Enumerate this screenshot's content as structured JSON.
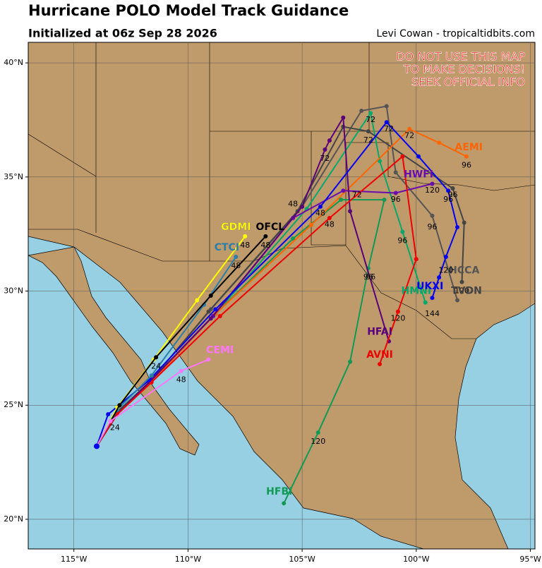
{
  "chart_data": {
    "type": "track_map",
    "title": "Hurricane POLO Model Track Guidance",
    "subtitle": "Initialized at 06z Sep 28 2026",
    "credit": "Levi Cowan - tropicaltidbits.com",
    "warning": [
      "DO NOT USE THIS MAP",
      "TO MAKE DECISIONS!",
      "SEEK OFFICIAL INFO"
    ],
    "xlim": [
      -117,
      -94.8
    ],
    "ylim": [
      18.7,
      40.9
    ],
    "xticks": [
      {
        "value": -115,
        "label": "115°W"
      },
      {
        "value": -110,
        "label": "110°W"
      },
      {
        "value": -105,
        "label": "105°W"
      },
      {
        "value": -100,
        "label": "100°W"
      },
      {
        "value": -95,
        "label": "95°W"
      }
    ],
    "yticks": [
      {
        "value": 20,
        "label": "20°N"
      },
      {
        "value": 25,
        "label": "25°N"
      },
      {
        "value": 30,
        "label": "30°N"
      },
      {
        "value": 35,
        "label": "35°N"
      },
      {
        "value": 40,
        "label": "40°N"
      }
    ],
    "grid": true,
    "series": [
      {
        "name": "HFBI",
        "color": "#119955",
        "lon": [
          -114.0,
          -113.1,
          -111.7,
          -108.9,
          -105.4,
          -103.3,
          -101.4,
          -102.1,
          -102.9,
          -104.3,
          -105.8
        ],
        "lat": [
          23.2,
          24.6,
          26.0,
          28.9,
          32.3,
          34.0,
          34.0,
          31.0,
          26.9,
          23.8,
          20.7
        ],
        "name_lon": -106.0,
        "name_lat": 21.2,
        "hours": [
          {
            "hour": 96,
            "lon": -102.1,
            "lat": 30.6
          },
          {
            "hour": 120,
            "lon": -104.3,
            "lat": 23.4
          }
        ]
      },
      {
        "name": "HMNI",
        "color": "#00a86b",
        "lon": [
          -114.0,
          -113.1,
          -111.7,
          -108.8,
          -104.8,
          -102.0,
          -101.6,
          -100.6,
          -99.6
        ],
        "lat": [
          23.2,
          24.6,
          26.0,
          29.0,
          33.6,
          37.8,
          35.7,
          32.6,
          29.5
        ],
        "name_lon": -100.0,
        "name_lat": 30.0,
        "hours": [
          {
            "hour": 72,
            "lon": -102.0,
            "lat": 37.5
          },
          {
            "hour": 96,
            "lon": -100.6,
            "lat": 32.2
          },
          {
            "hour": 144,
            "lon": -99.3,
            "lat": 29.0
          }
        ]
      },
      {
        "name": "HCCA",
        "color": "#555555",
        "lon": [
          -114.0,
          -113.1,
          -111.6,
          -109.0,
          -105.0,
          -102.4,
          -101.3,
          -100.9,
          -99.3,
          -98.2
        ],
        "lat": [
          23.2,
          24.7,
          26.1,
          29.2,
          33.7,
          37.9,
          38.1,
          35.2,
          33.3,
          29.6
        ],
        "name_lon": -97.9,
        "name_lat": 30.9,
        "hours": [
          {
            "hour": 72,
            "lon": -102.0,
            "lat": 37.5
          },
          {
            "hour": 96,
            "lon": -99.3,
            "lat": 32.8
          }
        ]
      },
      {
        "name": "TVDN",
        "color": "#444444",
        "lon": [
          -114.0,
          -113.1,
          -111.6,
          -109.1,
          -105.2,
          -103.2,
          -102.1,
          -98.4,
          -97.9,
          -98.0
        ],
        "lat": [
          23.2,
          24.7,
          26.1,
          29.1,
          33.5,
          37.2,
          37.0,
          34.5,
          33.0,
          30.4
        ],
        "name_lon": -97.8,
        "name_lat": 30.0,
        "hours": [
          {
            "hour": 72,
            "lon": -102.1,
            "lat": 36.6
          },
          {
            "hour": 96,
            "lon": -98.4,
            "lat": 34.2
          },
          {
            "hour": 120,
            "lon": -98.0,
            "lat": 30.0
          }
        ]
      },
      {
        "name": "AEMI",
        "color": "#ff6600",
        "lon": [
          -114.0,
          -113.1,
          -111.6,
          -108.8,
          -104.6,
          -100.3,
          -99.0,
          -97.8
        ],
        "lat": [
          23.2,
          24.6,
          26.0,
          29.0,
          32.9,
          37.1,
          36.5,
          35.9
        ],
        "name_lon": -97.7,
        "name_lat": 36.3,
        "hours": [
          {
            "hour": 72,
            "lon": -100.3,
            "lat": 36.8
          },
          {
            "hour": 96,
            "lon": -97.8,
            "lat": 35.5
          }
        ]
      },
      {
        "name": "HWFI",
        "color": "#6a0dad",
        "lon": [
          -114.0,
          -113.1,
          -111.7,
          -108.9,
          -105.4,
          -103.2,
          -100.9,
          -99.3
        ],
        "lat": [
          23.2,
          24.6,
          26.0,
          28.9,
          33.2,
          34.4,
          34.3,
          34.7
        ],
        "name_lon": -99.9,
        "name_lat": 35.1,
        "hours": [
          {
            "hour": 48,
            "lon": -105.4,
            "lat": 33.8
          },
          {
            "hour": 72,
            "lon": -102.6,
            "lat": 34.2
          },
          {
            "hour": 96,
            "lon": -100.9,
            "lat": 34.0
          },
          {
            "hour": 120,
            "lon": -99.3,
            "lat": 34.4
          }
        ]
      },
      {
        "name": "HFAI",
        "color": "#5a0078",
        "lon": [
          -114.0,
          -113.1,
          -111.7,
          -109.0,
          -105.0,
          -104.0,
          -103.8,
          -103.2,
          -102.9,
          -101.2
        ],
        "lat": [
          23.2,
          24.6,
          26.0,
          28.8,
          33.7,
          36.2,
          36.6,
          37.6,
          33.5,
          27.8
        ],
        "name_lon": -101.6,
        "name_lat": 28.2,
        "hours": [
          {
            "hour": 72,
            "lon": -104.0,
            "lat": 35.8
          },
          {
            "hour": 96,
            "lon": -102.0,
            "lat": 30.6
          }
        ]
      },
      {
        "name": "AVNI",
        "color": "#ee0000",
        "lon": [
          -114.0,
          -113.1,
          -111.6,
          -108.6,
          -103.8,
          -100.6,
          -100.0,
          -100.8,
          -101.6
        ],
        "lat": [
          23.2,
          24.6,
          26.0,
          28.9,
          33.2,
          35.9,
          31.4,
          29.1,
          26.8
        ],
        "name_lon": -101.6,
        "name_lat": 27.2,
        "hours": [
          {
            "hour": 48,
            "lon": -103.8,
            "lat": 32.9
          },
          {
            "hour": 120,
            "lon": -100.8,
            "lat": 28.8
          }
        ]
      },
      {
        "name": "UKXI",
        "color": "#0000ee",
        "lon": [
          -114.0,
          -113.5,
          -111.7,
          -108.8,
          -104.2,
          -101.3,
          -99.9,
          -98.6,
          -98.2,
          -98.7,
          -99.0,
          -99.3
        ],
        "lat": [
          23.2,
          24.6,
          26.1,
          29.2,
          33.7,
          37.4,
          35.9,
          34.4,
          32.8,
          31.5,
          30.6,
          29.7
        ],
        "name_lon": -99.4,
        "name_lat": 30.2,
        "hours": [
          {
            "hour": 48,
            "lon": -104.2,
            "lat": 33.4
          },
          {
            "hour": 72,
            "lon": -101.2,
            "lat": 37.1
          },
          {
            "hour": 96,
            "lon": -98.6,
            "lat": 34.0
          },
          {
            "hour": 120,
            "lon": -98.7,
            "lat": 30.9
          }
        ]
      },
      {
        "name": "CTCI",
        "color": "#2a7fa8",
        "lon": [
          -114.0,
          -113.1,
          -111.6,
          -109.3,
          -107.9
        ],
        "lat": [
          23.2,
          24.8,
          26.3,
          29.4,
          31.5
        ],
        "name_lon": -108.3,
        "name_lat": 31.9,
        "hours": [
          {
            "hour": 48,
            "lon": -107.9,
            "lat": 31.1
          }
        ]
      },
      {
        "name": "GDMI",
        "color": "#ffff00",
        "lon": [
          -114.0,
          -113.1,
          -111.5,
          -109.6,
          -107.5
        ],
        "lat": [
          23.2,
          24.9,
          27.0,
          29.6,
          32.4
        ],
        "name_lon": -107.9,
        "name_lat": 32.8,
        "hours": [
          {
            "hour": 48,
            "lon": -107.5,
            "lat": 32.0
          }
        ]
      },
      {
        "name": "OFCL",
        "color": "#000000",
        "lon": [
          -114.0,
          -113.0,
          -111.4,
          -109.0,
          -106.6
        ],
        "lat": [
          23.2,
          25.0,
          27.1,
          29.8,
          32.4
        ],
        "name_lon": -106.4,
        "name_lat": 32.8,
        "hours": [
          {
            "hour": 24,
            "lon": -111.4,
            "lat": 26.7
          },
          {
            "hour": 48,
            "lon": -106.6,
            "lat": 32.0
          }
        ]
      },
      {
        "name": "CEMI",
        "color": "#ff77ff",
        "lon": [
          -114.0,
          -113.4,
          -110.3,
          -109.1
        ],
        "lat": [
          23.2,
          24.3,
          26.5,
          27.0
        ],
        "name_lon": -108.6,
        "name_lat": 27.4,
        "hours": [
          {
            "hour": 24,
            "lon": -113.2,
            "lat": 24.0
          },
          {
            "hour": 48,
            "lon": -110.3,
            "lat": 26.1
          }
        ]
      }
    ]
  }
}
